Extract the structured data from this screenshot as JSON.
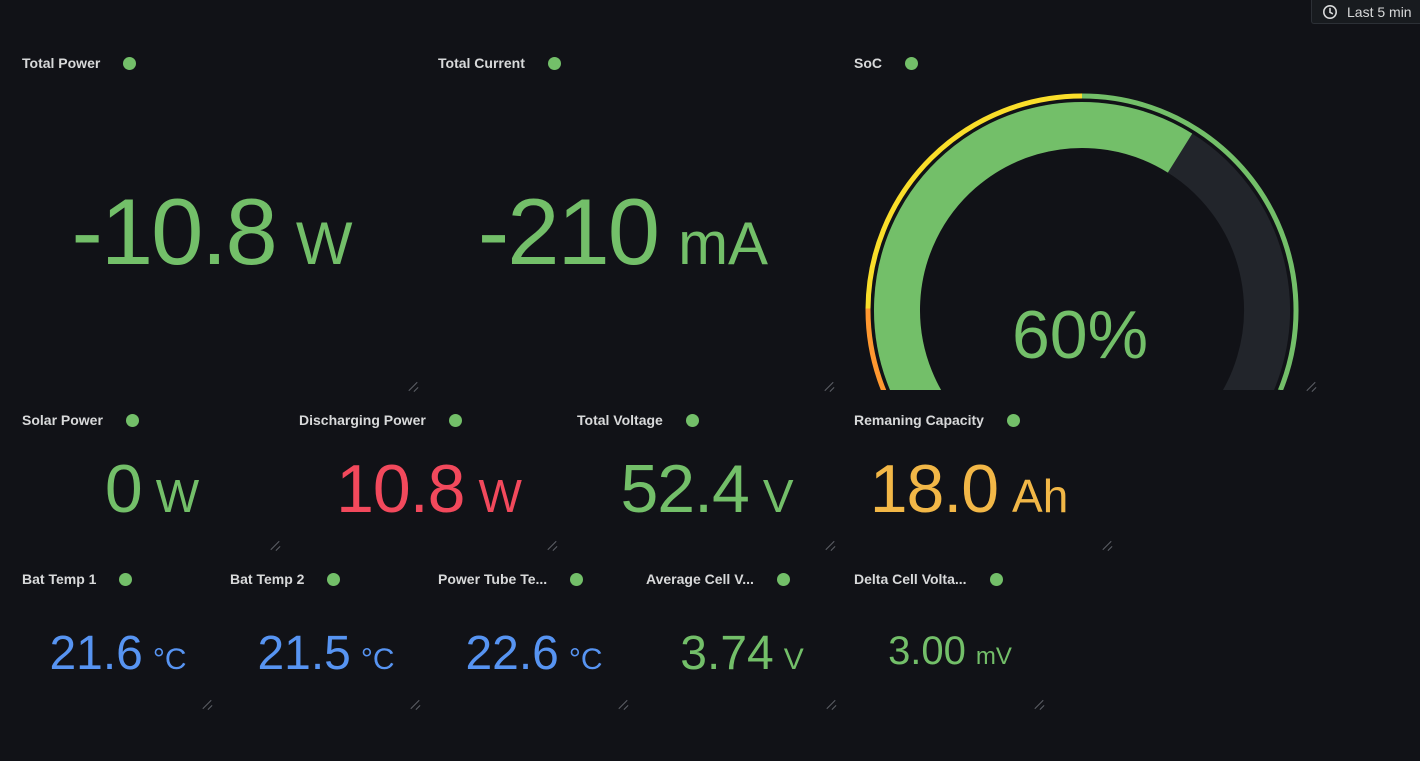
{
  "toolbar": {
    "time_range": "Last 5 min"
  },
  "colors": {
    "green": "#73bf69",
    "red": "#f2495c",
    "orange": "#f2b747",
    "blue": "#5794f2",
    "background": "#111217"
  },
  "panels": {
    "total_power": {
      "title": "Total Power",
      "value": "-10.8",
      "unit": "W"
    },
    "total_current": {
      "title": "Total Current",
      "value": "-210",
      "unit": "mA"
    },
    "soc": {
      "title": "SoC",
      "value_text": "60%",
      "percent": 60,
      "min": 0,
      "max": 100
    },
    "solar_power": {
      "title": "Solar Power",
      "value": "0",
      "unit": "W"
    },
    "discharging_power": {
      "title": "Discharging Power",
      "value": "10.8",
      "unit": "W"
    },
    "total_voltage": {
      "title": "Total Voltage",
      "value": "52.4",
      "unit": "V"
    },
    "remaining_capacity": {
      "title": "Remaning Capacity",
      "value": "18.0",
      "unit": "Ah"
    },
    "bat_temp_1": {
      "title": "Bat Temp 1",
      "value": "21.6",
      "unit": "°C"
    },
    "bat_temp_2": {
      "title": "Bat Temp 2",
      "value": "21.5",
      "unit": "°C"
    },
    "power_tube_temp": {
      "title": "Power Tube Te...",
      "value": "22.6",
      "unit": "°C"
    },
    "average_cell_voltage": {
      "title": "Average Cell V...",
      "value": "3.74",
      "unit": "V"
    },
    "delta_cell_voltage": {
      "title": "Delta Cell Volta...",
      "value": "3.00",
      "unit": "mV"
    }
  }
}
